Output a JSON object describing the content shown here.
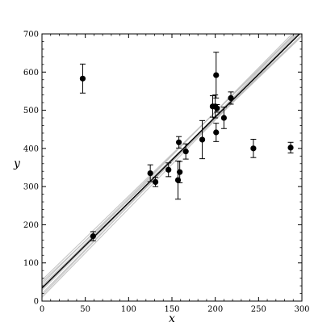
{
  "chart_data": {
    "type": "scatter",
    "title": "",
    "xlabel": "x",
    "ylabel": "y",
    "xlim": [
      0,
      300
    ],
    "ylim": [
      0,
      700
    ],
    "xticks": [
      0,
      50,
      100,
      150,
      200,
      250,
      300
    ],
    "yticks": [
      0,
      100,
      200,
      300,
      400,
      500,
      600,
      700
    ],
    "xtick_labels": [
      "0",
      "50",
      "100",
      "150",
      "200",
      "250",
      "300"
    ],
    "ytick_labels": [
      "0",
      "100",
      "200",
      "300",
      "400",
      "500",
      "600",
      "700"
    ],
    "grid": false,
    "legend": "none",
    "colors": {
      "points": "#000000",
      "fit_line": "#000000",
      "sample_lines": "#bbbbbb"
    },
    "points": [
      {
        "x": 47,
        "y": 583,
        "yerr": 38
      },
      {
        "x": 59,
        "y": 170,
        "yerr": 12
      },
      {
        "x": 125,
        "y": 335,
        "yerr": 22
      },
      {
        "x": 131,
        "y": 312,
        "yerr": 12
      },
      {
        "x": 146,
        "y": 344,
        "yerr": 18
      },
      {
        "x": 157,
        "y": 317,
        "yerr": 50
      },
      {
        "x": 158,
        "y": 416,
        "yerr": 15
      },
      {
        "x": 159,
        "y": 338,
        "yerr": 28
      },
      {
        "x": 166,
        "y": 392,
        "yerr": 20
      },
      {
        "x": 185,
        "y": 423,
        "yerr": 50
      },
      {
        "x": 197,
        "y": 510,
        "yerr": 28
      },
      {
        "x": 200,
        "y": 510,
        "yerr": 30
      },
      {
        "x": 201,
        "y": 592,
        "yerr": 60
      },
      {
        "x": 201,
        "y": 442,
        "yerr": 24
      },
      {
        "x": 202,
        "y": 505,
        "yerr": 10
      },
      {
        "x": 210,
        "y": 480,
        "yerr": 28
      },
      {
        "x": 218,
        "y": 532,
        "yerr": 16
      },
      {
        "x": 244,
        "y": 400,
        "yerr": 24
      },
      {
        "x": 287,
        "y": 402,
        "yerr": 14
      }
    ],
    "fit_line": {
      "intercept": 34,
      "slope": 2.24
    },
    "sample_lines": [
      {
        "intercept": 20,
        "slope": 2.3
      },
      {
        "intercept": 28,
        "slope": 2.28
      },
      {
        "intercept": 40,
        "slope": 2.18
      },
      {
        "intercept": 45,
        "slope": 2.25
      },
      {
        "intercept": 15,
        "slope": 2.35
      },
      {
        "intercept": 50,
        "slope": 2.15
      },
      {
        "intercept": 32,
        "slope": 2.22
      },
      {
        "intercept": 36,
        "slope": 2.3
      },
      {
        "intercept": 10,
        "slope": 2.32
      },
      {
        "intercept": 55,
        "slope": 2.2
      }
    ]
  }
}
